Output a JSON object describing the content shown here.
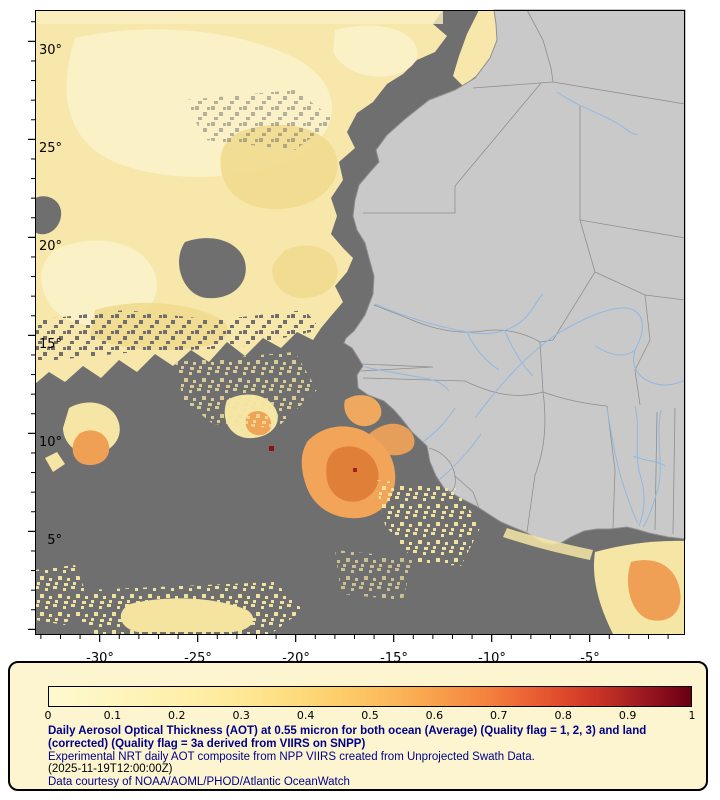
{
  "map": {
    "lat_labels": [
      "30°",
      "25°",
      "20°",
      "15°",
      "10°",
      "5°"
    ],
    "lon_labels": [
      "-30°",
      "-25°",
      "-20°",
      "-15°",
      "-10°",
      "-5°"
    ]
  },
  "legend": {
    "ticks": [
      "0",
      "0.1",
      "0.2",
      "0.3",
      "0.4",
      "0.5",
      "0.6",
      "0.7",
      "0.8",
      "0.9",
      "1"
    ],
    "scale_min": 0,
    "scale_max": 1,
    "title": "Daily Aerosol Optical Thickness (AOT) at 0.55 micron for both ocean (Average) (Quality flag = 1, 2, 3) and land (corrected) (Quality flag = 3a derived from VIIRS on SNPP)",
    "line2": "Experimental NRT daily AOT composite from NPP VIIRS created from Unprojected Swath Data.",
    "line3": "(2025-11-19T12:00:00Z)",
    "line4": "Data courtesy of NOAA/AOML/PHOD/Atlantic OceanWatch"
  },
  "colors": {
    "no_data_gray": "#6F6F6F",
    "land_gray": "#C9C9C9",
    "aerosol_low": "#F7E7AB",
    "aerosol_mid": "#F2A459",
    "aerosol_high": "#8B1212",
    "panel_background": "#FCF5D0",
    "caption_navy": "#00008B",
    "river_blue": "#8FB9E2"
  }
}
